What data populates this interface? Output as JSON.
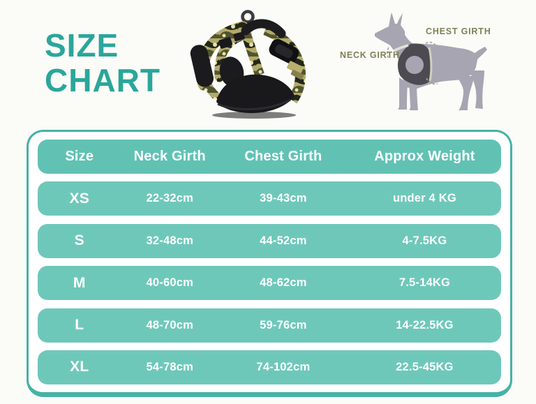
{
  "header": {
    "title_line1": "SIZE",
    "title_line2": "CHART"
  },
  "diagram": {
    "neck_label": "NECK GIRTH",
    "chest_label": "CHEST GIRTH"
  },
  "product_image": {
    "description": "black and camouflage dog harness"
  },
  "theme": {
    "page_bg": "#FBFBF8",
    "title_color": "#2BA69A",
    "label_color": "#7F8156",
    "table_border": "#45B3A4",
    "header_bg": "#61C2B4",
    "row_bg": "#6EC8BA",
    "table_text": "#FFFFFF",
    "dog_color": "#A8A5B2",
    "dog_harness": "#4D4B51"
  },
  "table": {
    "columns": [
      "Size",
      "Neck Girth",
      "Chest Girth",
      "Approx Weight"
    ],
    "rows": [
      {
        "size": "XS",
        "neck": "22-32cm",
        "chest": "39-43cm",
        "weight": "under 4 KG"
      },
      {
        "size": "S",
        "neck": "32-48cm",
        "chest": "44-52cm",
        "weight": "4-7.5KG"
      },
      {
        "size": "M",
        "neck": "40-60cm",
        "chest": "48-62cm",
        "weight": "7.5-14KG"
      },
      {
        "size": "L",
        "neck": "48-70cm",
        "chest": "59-76cm",
        "weight": "14-22.5KG"
      },
      {
        "size": "XL",
        "neck": "54-78cm",
        "chest": "74-102cm",
        "weight": "22.5-45KG"
      }
    ]
  },
  "chart_data": {
    "type": "table",
    "title": "SIZE CHART",
    "columns": [
      "Size",
      "Neck Girth",
      "Chest Girth",
      "Approx Weight"
    ],
    "rows": [
      [
        "XS",
        "22-32cm",
        "39-43cm",
        "under 4 KG"
      ],
      [
        "S",
        "32-48cm",
        "44-52cm",
        "4-7.5KG"
      ],
      [
        "M",
        "40-60cm",
        "48-62cm",
        "7.5-14KG"
      ],
      [
        "L",
        "48-70cm",
        "59-76cm",
        "14-22.5KG"
      ],
      [
        "XL",
        "54-78cm",
        "74-102cm",
        "22.5-45KG"
      ]
    ]
  }
}
